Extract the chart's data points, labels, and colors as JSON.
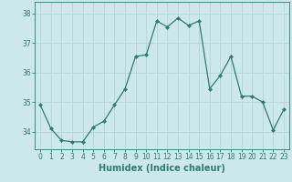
{
  "x": [
    0,
    1,
    2,
    3,
    4,
    5,
    6,
    7,
    8,
    9,
    10,
    11,
    12,
    13,
    14,
    15,
    16,
    17,
    18,
    19,
    20,
    21,
    22,
    23
  ],
  "y": [
    34.9,
    34.1,
    33.7,
    33.65,
    33.65,
    34.15,
    34.35,
    34.9,
    35.45,
    36.55,
    36.6,
    37.75,
    37.55,
    37.85,
    37.6,
    37.75,
    35.45,
    35.9,
    36.55,
    35.2,
    35.2,
    35.0,
    34.05,
    34.75
  ],
  "line_color": "#2e7d6e",
  "marker": "D",
  "marker_size": 2,
  "bg_color": "#cce8e8",
  "grid_color": "#b8d8d8",
  "xlabel": "Humidex (Indice chaleur)",
  "ylim": [
    33.4,
    38.4
  ],
  "yticks": [
    34,
    35,
    36,
    37,
    38
  ],
  "xticks": [
    0,
    1,
    2,
    3,
    4,
    5,
    6,
    7,
    8,
    9,
    10,
    11,
    12,
    13,
    14,
    15,
    16,
    17,
    18,
    19,
    20,
    21,
    22,
    23
  ],
  "tick_label_fontsize": 5.5,
  "xlabel_fontsize": 7,
  "axis_color": "#2e7d6e"
}
